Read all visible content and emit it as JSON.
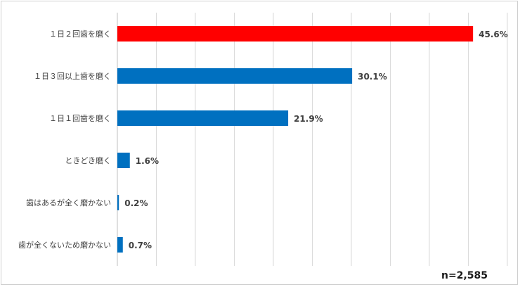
{
  "chart_data": {
    "type": "bar",
    "orientation": "horizontal",
    "title": "",
    "xlabel": "",
    "ylabel": "",
    "categories": [
      "１日２回歯を磨く",
      "１日３回以上歯を磨く",
      "１日１回歯を磨く",
      "ときどき磨く",
      "歯はあるが全く磨かない",
      "歯が全くないため磨かない"
    ],
    "values": [
      45.6,
      30.1,
      21.9,
      1.6,
      0.2,
      0.7
    ],
    "value_labels": [
      "45.6%",
      "30.1%",
      "21.9%",
      "1.6%",
      "0.2%",
      "0.7%"
    ],
    "bar_colors": [
      "#ff0000",
      "#0070c0",
      "#0070c0",
      "#0070c0",
      "#0070c0",
      "#0070c0"
    ],
    "xlim": [
      0,
      50
    ],
    "grid": true,
    "grid_color": "#d9d9d9",
    "axis_color": "#bfbfbf",
    "sample_size": "n=2,585"
  }
}
